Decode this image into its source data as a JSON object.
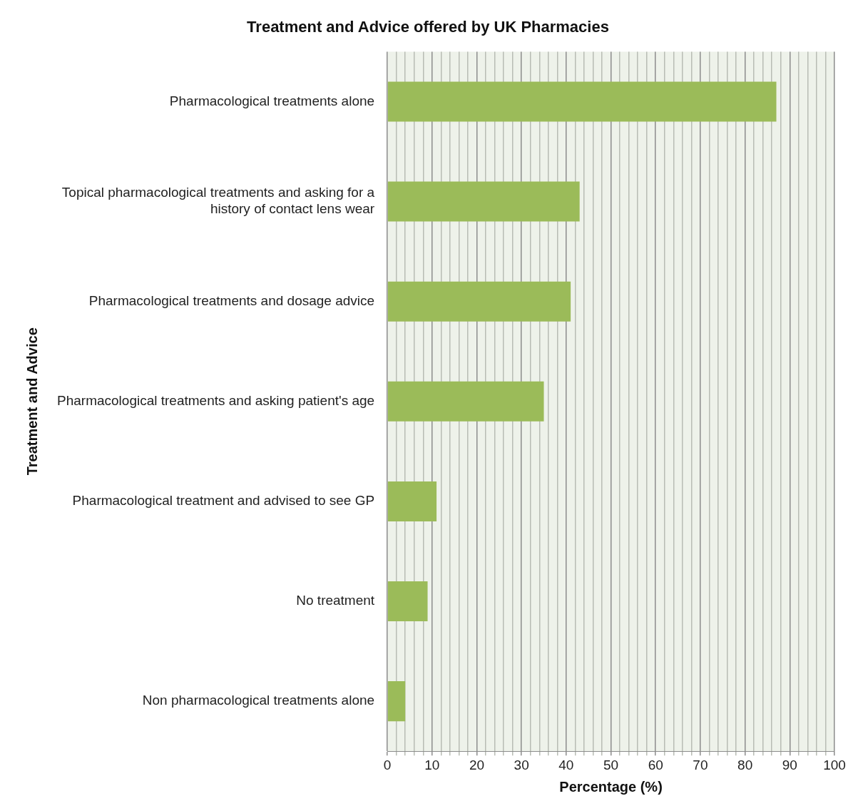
{
  "chart_data": {
    "type": "bar",
    "orientation": "horizontal",
    "title": "Treatment and Advice offered by UK Pharmacies",
    "xlabel": "Percentage (%)",
    "ylabel": "Treatment and Advice",
    "categories": [
      "Pharmacological treatments alone",
      "Topical pharmacological treatments and asking for a history of contact lens wear",
      "Pharmacological treatments and dosage advice",
      "Pharmacological treatments and asking patient's age",
      "Pharmacological treatment and advised to see GP",
      "No treatment",
      "Non pharmacological treatments alone"
    ],
    "values": [
      87,
      43,
      41,
      35,
      11,
      9,
      4
    ],
    "color": "#9bbb59",
    "xlim": [
      0,
      100
    ],
    "xticks": [
      0,
      {
        "value": 2,
        "label": null
      },
      {
        "value": 4,
        "label": null
      },
      {
        "value": 6,
        "label": null
      },
      {
        "value": 8,
        "label": null
      },
      10,
      {
        "value": 12,
        "label": null
      },
      {
        "value": 14,
        "label": null
      },
      {
        "value": 16,
        "label": null
      },
      {
        "value": 18,
        "label": null
      },
      20,
      {
        "value": 22,
        "label": null
      },
      {
        "value": 24,
        "label": null
      },
      {
        "value": 26,
        "label": null
      },
      {
        "value": 28,
        "label": null
      },
      30,
      {
        "value": 32,
        "label": null
      },
      {
        "value": 34,
        "label": null
      },
      {
        "value": 36,
        "label": null
      },
      {
        "value": 38,
        "label": null
      },
      40,
      {
        "value": 42,
        "label": null
      },
      {
        "value": 44,
        "label": null
      },
      {
        "value": 46,
        "label": null
      },
      {
        "value": 48,
        "label": null
      },
      50,
      {
        "value": 52,
        "label": null
      },
      {
        "value": 54,
        "label": null
      },
      {
        "value": 56,
        "label": null
      },
      {
        "value": 58,
        "label": null
      },
      60,
      {
        "value": 62,
        "label": null
      },
      {
        "value": 64,
        "label": null
      },
      {
        "value": 66,
        "label": null
      },
      {
        "value": 68,
        "label": null
      },
      70,
      {
        "value": 72,
        "label": null
      },
      {
        "value": 74,
        "label": null
      },
      {
        "value": 76,
        "label": null
      },
      {
        "value": 78,
        "label": null
      },
      80,
      {
        "value": 82,
        "label": null
      },
      {
        "value": 84,
        "label": null
      },
      {
        "value": 86,
        "label": null
      },
      {
        "value": 88,
        "label": null
      },
      90,
      {
        "value": 92,
        "label": null
      },
      {
        "value": 94,
        "label": null
      },
      {
        "value": 96,
        "label": null
      },
      {
        "value": 98,
        "label": null
      },
      100
    ],
    "grid": "x",
    "legend": false
  }
}
